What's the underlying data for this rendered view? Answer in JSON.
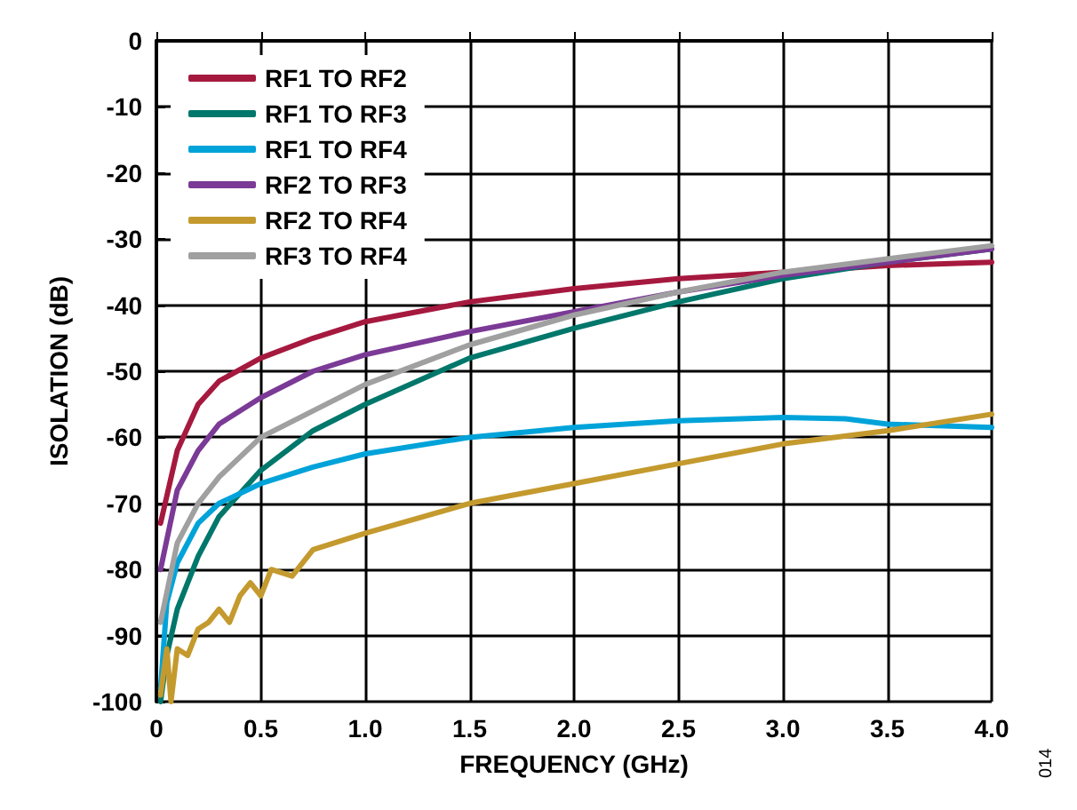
{
  "chart_data": {
    "type": "line",
    "xlabel": "FREQUENCY (GHz)",
    "ylabel": "ISOLATION (dB)",
    "annotations": [
      "014"
    ],
    "xlim": [
      0,
      4
    ],
    "ylim": [
      -100,
      0
    ],
    "xticks": [
      0,
      {
        "value": 0.5,
        "label": "0.5"
      },
      {
        "value": 1,
        "label": "1.0"
      },
      {
        "value": 1.5,
        "label": "1.5"
      },
      {
        "value": 2,
        "label": "2.0"
      },
      {
        "value": 2.5,
        "label": "2.5"
      },
      {
        "value": 3,
        "label": "3.0"
      },
      {
        "value": 3.5,
        "label": "3.5"
      },
      {
        "value": 4,
        "label": "4.0"
      }
    ],
    "yticks": [
      -100,
      -90,
      -80,
      -70,
      -60,
      -50,
      -40,
      -30,
      -20,
      -10,
      0
    ],
    "grid": true,
    "legend": "top left",
    "line_style": "solid",
    "marker": "none",
    "series": [
      {
        "name": "RF1 TO RF2",
        "color": "#a6193f",
        "x": [
          0.02,
          0.1,
          0.2,
          0.3,
          0.5,
          0.75,
          1,
          1.5,
          2,
          2.5,
          3,
          3.5,
          4
        ],
        "values": [
          -73,
          -62,
          -55,
          -51.5,
          -48,
          -45,
          -42.5,
          -39.5,
          -37.5,
          -36,
          -35,
          -34,
          -33.5
        ]
      },
      {
        "name": "RF1 TO RF3",
        "color": "#00776b",
        "x": [
          0.02,
          0.05,
          0.1,
          0.2,
          0.3,
          0.5,
          0.75,
          1,
          1.5,
          2,
          2.5,
          3,
          3.5,
          4
        ],
        "values": [
          -100,
          -93,
          -86,
          -78,
          -72,
          -65,
          -59,
          -55,
          -48,
          -43.5,
          -39.5,
          -36,
          -33.5,
          -31.5
        ]
      },
      {
        "name": "RF1 TO RF4",
        "color": "#00a3d9",
        "x": [
          0.02,
          0.05,
          0.1,
          0.2,
          0.3,
          0.5,
          0.75,
          1,
          1.5,
          2,
          2.5,
          3,
          3.3,
          3.5,
          4
        ],
        "values": [
          -98,
          -85,
          -79,
          -73,
          -70,
          -67,
          -64.5,
          -62.5,
          -60,
          -58.5,
          -57.5,
          -57,
          -57.2,
          -58,
          -58.5
        ]
      },
      {
        "name": "RF2 TO RF3",
        "color": "#7b3a96",
        "x": [
          0.02,
          0.1,
          0.2,
          0.3,
          0.5,
          0.75,
          1,
          1.5,
          2,
          2.5,
          3,
          3.5,
          4
        ],
        "values": [
          -80,
          -68,
          -62,
          -58,
          -54,
          -50,
          -47.5,
          -44,
          -41,
          -38,
          -35.5,
          -33.5,
          -31.5
        ]
      },
      {
        "name": "RF2 TO RF4",
        "color": "#c49a2e",
        "x": [
          0.02,
          0.05,
          0.07,
          0.1,
          0.15,
          0.2,
          0.25,
          0.3,
          0.35,
          0.4,
          0.45,
          0.5,
          0.55,
          0.65,
          0.75,
          1,
          1.5,
          2,
          2.5,
          3,
          3.5,
          4
        ],
        "values": [
          -99,
          -92,
          -100,
          -92,
          -93,
          -89,
          -88,
          -86,
          -88,
          -84,
          -82,
          -84,
          -80,
          -81,
          -77,
          -74.5,
          -70,
          -67,
          -64,
          -61,
          -59,
          -56.5
        ]
      },
      {
        "name": "RF3 TO RF4",
        "color": "#a0a0a0",
        "x": [
          0.02,
          0.1,
          0.2,
          0.3,
          0.5,
          0.75,
          1,
          1.5,
          2,
          2.5,
          3,
          3.5,
          4
        ],
        "values": [
          -88,
          -76,
          -70,
          -66,
          -60,
          -56,
          -52,
          -46,
          -41.5,
          -38,
          -35,
          -33,
          -31
        ]
      }
    ]
  }
}
